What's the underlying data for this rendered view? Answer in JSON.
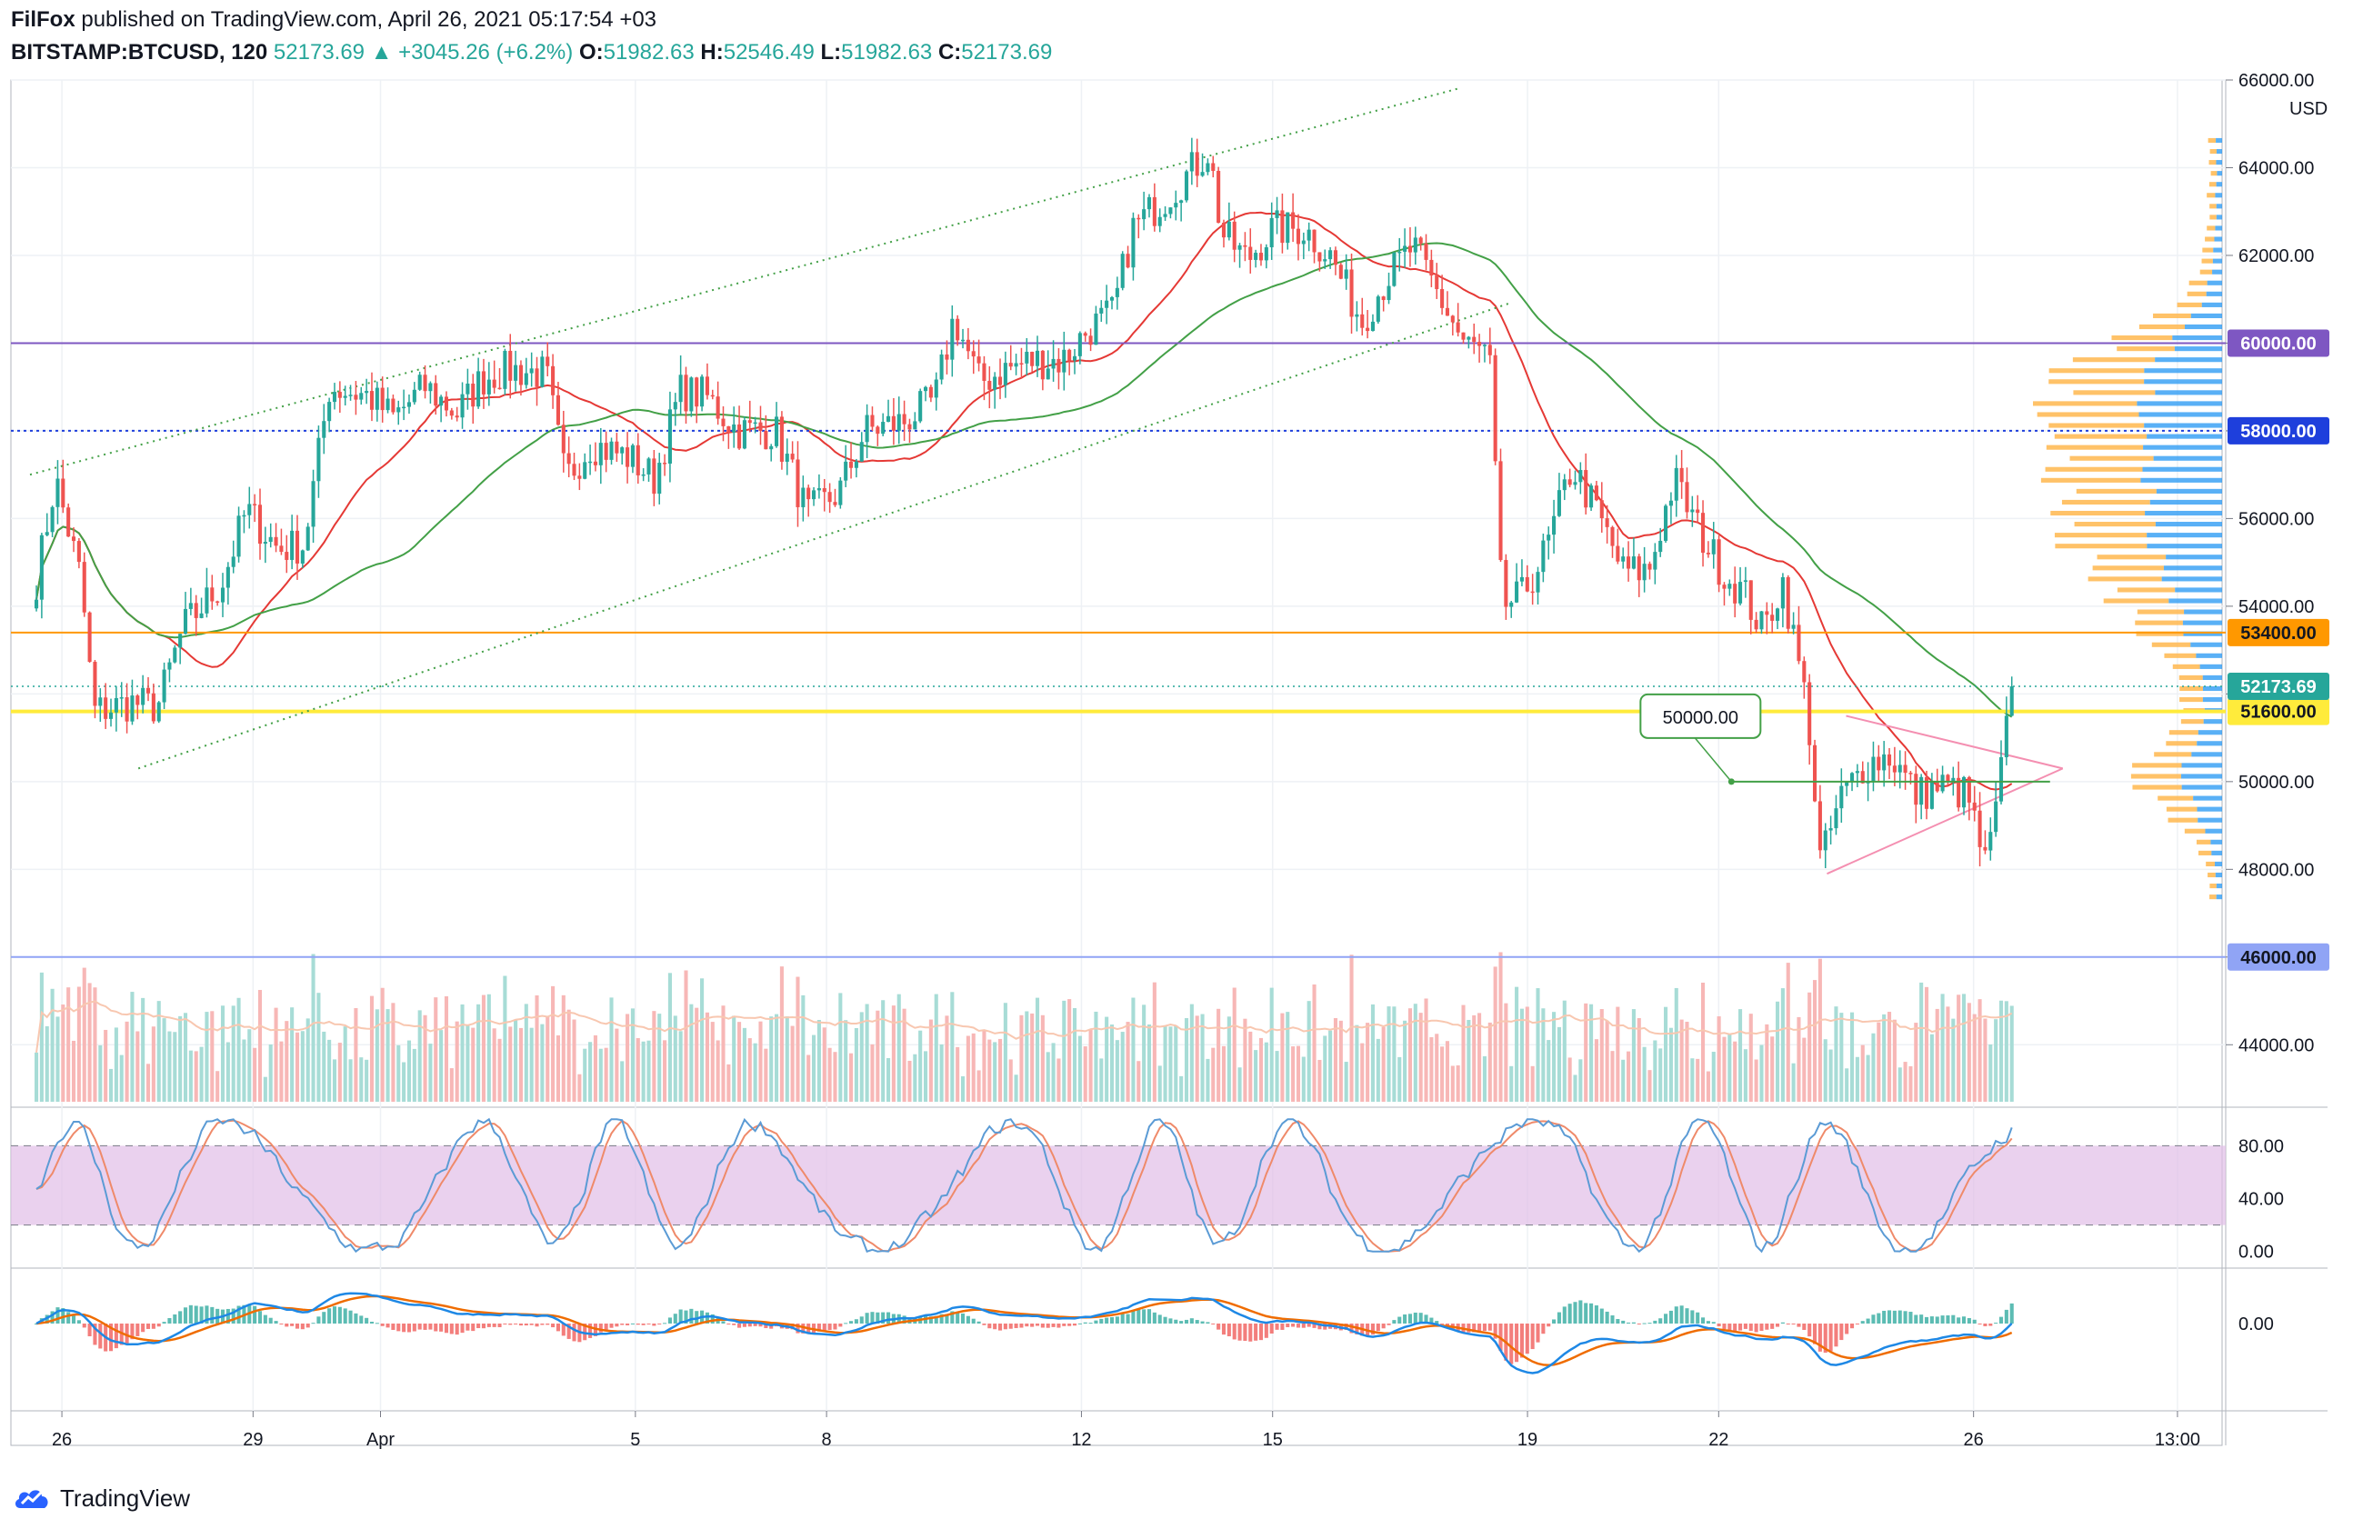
{
  "header": {
    "author": "FilFox",
    "publish_text": "published on TradingView.com, April 26, 2021 05:17:54 +03",
    "symbol": "BITSTAMP:BTCUSD, 120",
    "last": "52173.69",
    "change": "▲ +3045.26 (+6.2%)",
    "o_label": "O:",
    "o_value": "51982.63",
    "h_label": "H:",
    "h_value": "52546.49",
    "l_label": "L:",
    "l_value": "51982.63",
    "c_label": "C:",
    "c_value": "52173.69"
  },
  "footer": {
    "brand": "TradingView"
  },
  "colors": {
    "up": "#26a69a",
    "down": "#ef5350",
    "ma_red": "#e53935",
    "ma_green": "#43a047",
    "channel": "#43a047",
    "purple_level": "#7e57c2",
    "blue_level": "#1e3fdc",
    "orange_level": "#ff9800",
    "yellow_level": "#ffeb3b",
    "light_blue_level": "#90a4f5",
    "stoch_band": "#e1bee7",
    "k_line": "#5b9bd5",
    "d_line": "#ef8a6a",
    "macd_line": "#1e88e5",
    "signal_line": "#ef6c00",
    "vp_blue": "#2196f3",
    "vp_orange": "#ffb74d"
  },
  "icons": {
    "logo": "tradingview-cloud-icon"
  },
  "chart_data": {
    "type": "candlestick",
    "symbol": "BITSTAMP:BTCUSD",
    "interval": "120",
    "currency_label": "USD",
    "x_tick_labels": [
      "26",
      "29",
      "Apr",
      "5",
      "8",
      "12",
      "15",
      "19",
      "22",
      "26",
      "13:00"
    ],
    "x_tick_offsets": [
      0.4,
      3.4,
      5.4,
      9.4,
      12.4,
      16.4,
      19.4,
      23.4,
      26.4,
      30.4,
      33.6
    ],
    "x_range_days": [
      -0.4,
      34.3
    ],
    "ylim": [
      42700,
      66000
    ],
    "y_tick_values": [
      44000,
      46000,
      48000,
      50000,
      52000,
      54000,
      56000,
      58000,
      60000,
      62000,
      64000,
      66000
    ],
    "y_tick_labels": [
      "44000.00",
      "46000.00",
      "48000.00",
      "50000.00",
      "52000.00",
      "54000.00",
      "56000.00",
      "58000.00",
      "60000.00",
      "62000.00",
      "64000.00",
      "66000.00"
    ],
    "anchors": [
      [
        0.0,
        54600
      ],
      [
        0.3,
        56900
      ],
      [
        0.7,
        54600
      ],
      [
        0.9,
        51600
      ],
      [
        1.5,
        51800
      ],
      [
        1.9,
        51700
      ],
      [
        2.3,
        53500
      ],
      [
        2.9,
        54500
      ],
      [
        3.3,
        56200
      ],
      [
        3.8,
        55300
      ],
      [
        4.2,
        55400
      ],
      [
        4.6,
        59000
      ],
      [
        5.2,
        58800
      ],
      [
        5.6,
        58300
      ],
      [
        6.1,
        59000
      ],
      [
        6.6,
        58400
      ],
      [
        7.0,
        59200
      ],
      [
        7.4,
        59400
      ],
      [
        8.0,
        59300
      ],
      [
        8.3,
        56900
      ],
      [
        8.7,
        57700
      ],
      [
        9.3,
        57400
      ],
      [
        9.7,
        56900
      ],
      [
        10.1,
        58900
      ],
      [
        10.5,
        58800
      ],
      [
        11.0,
        58000
      ],
      [
        11.6,
        58000
      ],
      [
        12.1,
        56100
      ],
      [
        12.6,
        56600
      ],
      [
        13.0,
        58000
      ],
      [
        13.6,
        58200
      ],
      [
        14.1,
        58700
      ],
      [
        14.4,
        60600
      ],
      [
        14.8,
        59100
      ],
      [
        15.2,
        59400
      ],
      [
        15.6,
        59600
      ],
      [
        16.1,
        59600
      ],
      [
        16.5,
        60300
      ],
      [
        16.9,
        60700
      ],
      [
        17.2,
        62600
      ],
      [
        17.7,
        63300
      ],
      [
        18.1,
        63900
      ],
      [
        18.4,
        64400
      ],
      [
        18.6,
        62500
      ],
      [
        19.0,
        61900
      ],
      [
        19.4,
        62600
      ],
      [
        19.9,
        62600
      ],
      [
        20.3,
        62000
      ],
      [
        20.8,
        60500
      ],
      [
        21.2,
        61500
      ],
      [
        21.6,
        62200
      ],
      [
        22.0,
        61100
      ],
      [
        22.4,
        60000
      ],
      [
        22.8,
        59700
      ],
      [
        23.0,
        54000
      ],
      [
        23.3,
        54200
      ],
      [
        23.7,
        55300
      ],
      [
        24.1,
        57200
      ],
      [
        24.5,
        56100
      ],
      [
        24.9,
        54800
      ],
      [
        25.3,
        54800
      ],
      [
        25.7,
        56900
      ],
      [
        26.1,
        55700
      ],
      [
        26.5,
        54700
      ],
      [
        26.8,
        54300
      ],
      [
        27.1,
        53400
      ],
      [
        27.4,
        54600
      ],
      [
        27.8,
        51600
      ],
      [
        28.0,
        48100
      ],
      [
        28.3,
        49600
      ],
      [
        28.7,
        50400
      ],
      [
        29.1,
        50600
      ],
      [
        29.5,
        49700
      ],
      [
        29.9,
        49900
      ],
      [
        30.3,
        49700
      ],
      [
        30.6,
        48000
      ],
      [
        30.8,
        49800
      ],
      [
        31.0,
        52170
      ]
    ],
    "overlays": {
      "horizontal_levels": [
        {
          "price": 60000,
          "label": "60000.00",
          "color": "purple",
          "style": "solid"
        },
        {
          "price": 58000,
          "label": "58000.00",
          "color": "blue",
          "style": "dotted"
        },
        {
          "price": 53400,
          "label": "53400.00",
          "color": "orange",
          "style": "solid"
        },
        {
          "price": 51600,
          "label": "51600.00",
          "color": "yellow",
          "style": "solid"
        },
        {
          "price": 46000,
          "label": "46000.00",
          "color": "light_blue",
          "style": "solid"
        }
      ],
      "last_price": {
        "price": 52173.69,
        "label": "52173.69"
      },
      "channel_upper": [
        [
          -0.1,
          57000
        ],
        [
          22.3,
          65800
        ]
      ],
      "channel_lower": [
        [
          1.6,
          50300
        ],
        [
          23.1,
          60900
        ]
      ],
      "triangle_upper": [
        [
          28.4,
          51500
        ],
        [
          31.8,
          50300
        ]
      ],
      "triangle_lower": [
        [
          28.1,
          47900
        ],
        [
          31.8,
          50300
        ]
      ],
      "horizontal_ray": {
        "start_day": 26.6,
        "end_day": 31.6,
        "price": 50000
      },
      "callout": {
        "text": "50000.00",
        "anchor_day": 26.6,
        "anchor_price": 50000
      }
    },
    "stochastic": {
      "ylim": [
        -5,
        105
      ],
      "ticks": [
        "0.00",
        "40.00",
        "80.00"
      ],
      "tick_values": [
        0,
        40,
        80
      ],
      "band": [
        20,
        80
      ]
    },
    "macd": {
      "ticks": [
        "0.00"
      ],
      "tick_values": [
        0
      ]
    }
  }
}
